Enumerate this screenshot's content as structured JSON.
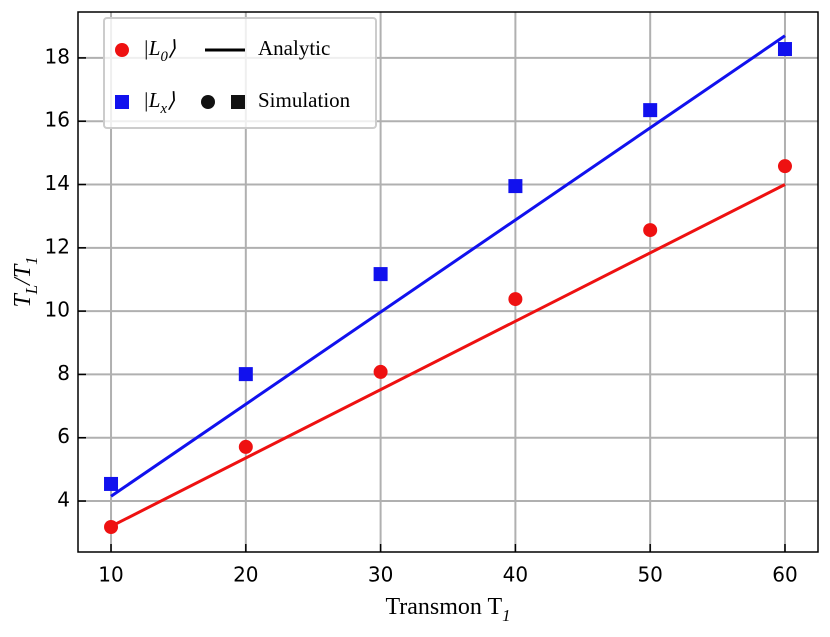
{
  "chart_data": {
    "type": "scatter",
    "x": [
      10,
      20,
      30,
      40,
      50,
      60
    ],
    "series": [
      {
        "name": [
          "|L",
          "0",
          "⟩"
        ],
        "color": "#ee1111",
        "marker": "circle",
        "values": [
          3.18,
          5.71,
          8.08,
          10.38,
          12.56,
          14.58
        ]
      },
      {
        "name": [
          "|L",
          "x",
          "⟩"
        ],
        "color": "#1111ee",
        "marker": "square",
        "values": [
          4.54,
          8.01,
          11.17,
          13.95,
          16.35,
          18.28
        ]
      }
    ],
    "analytic": {
      "name": "Analytic",
      "color": "#000000",
      "x": [
        10,
        60
      ],
      "lines": [
        {
          "color": "#ee1111",
          "values": [
            3.2,
            14.0
          ]
        },
        {
          "color": "#1111ee",
          "values": [
            4.15,
            18.7
          ]
        }
      ]
    },
    "simulation_label": "Simulation",
    "xlabel": [
      "Transmon T",
      "1"
    ],
    "ylabel": [
      "T",
      "L",
      "/T",
      "1"
    ],
    "xlim": [
      7.55,
      62.45
    ],
    "ylim": [
      2.39,
      19.45
    ],
    "xticks": [
      10,
      20,
      30,
      40,
      50,
      60
    ],
    "yticks": [
      4,
      6,
      8,
      10,
      12,
      14,
      16,
      18
    ],
    "grid": true,
    "legend": "upper left"
  }
}
